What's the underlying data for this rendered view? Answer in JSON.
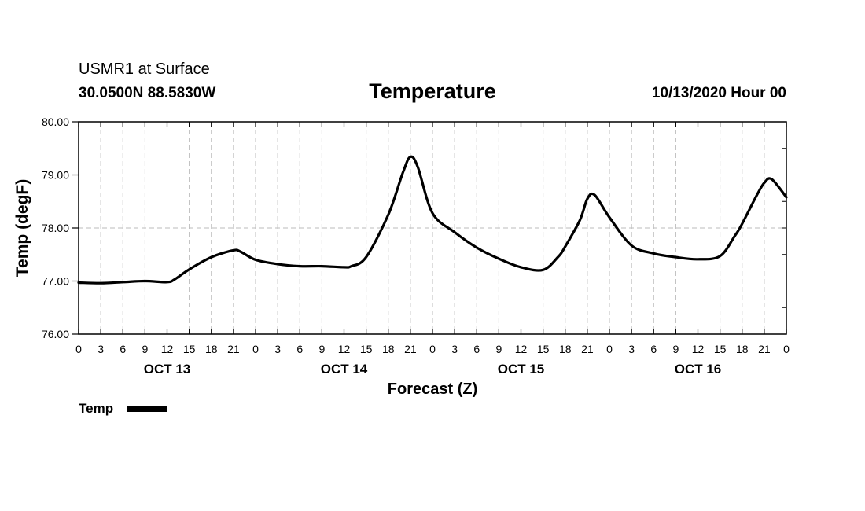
{
  "header": {
    "station": "USMR1 at Surface",
    "location": "30.0500N 88.5830W",
    "title": "Temperature",
    "datetime": "10/13/2020 Hour 00"
  },
  "legend": {
    "label": "Temp"
  },
  "colors": {
    "line": "#000000",
    "grid": "#bbbbbb",
    "background": "#ffffff"
  },
  "chart_data": {
    "type": "line",
    "title": "Temperature",
    "xlabel": "Forecast (Z)",
    "ylabel": "Temp (degF)",
    "ylim": [
      76,
      80
    ],
    "xlim": [
      0,
      96
    ],
    "yticks": [
      "76.00",
      "77.00",
      "78.00",
      "79.00",
      "80.00"
    ],
    "xtick_labels": [
      "0",
      "3",
      "6",
      "9",
      "12",
      "15",
      "18",
      "21",
      "0",
      "3",
      "6",
      "9",
      "12",
      "15",
      "18",
      "21",
      "0",
      "3",
      "6",
      "9",
      "12",
      "15",
      "18",
      "21",
      "0",
      "3",
      "6",
      "9",
      "12",
      "15",
      "18",
      "21",
      "0"
    ],
    "day_labels": [
      {
        "label": "OCT 13",
        "hour": 12
      },
      {
        "label": "OCT 14",
        "hour": 36
      },
      {
        "label": "OCT 15",
        "hour": 60
      },
      {
        "label": "OCT 16",
        "hour": 84
      }
    ],
    "series": [
      {
        "name": "Temp",
        "x": [
          0,
          3,
          6,
          9,
          12,
          13,
          15,
          18,
          21,
          22,
          24,
          27,
          30,
          33,
          36,
          37,
          39,
          42,
          44,
          45,
          46,
          48,
          51,
          54,
          57,
          60,
          63,
          65,
          66,
          68,
          69,
          70,
          72,
          75,
          78,
          81,
          84,
          87,
          89,
          90,
          92,
          93,
          94,
          96
        ],
        "values": [
          76.97,
          76.96,
          76.98,
          77.0,
          76.98,
          77.03,
          77.22,
          77.45,
          77.58,
          77.55,
          77.4,
          77.32,
          77.28,
          77.28,
          77.26,
          77.28,
          77.45,
          78.25,
          79.05,
          79.34,
          79.15,
          78.28,
          77.92,
          77.63,
          77.42,
          77.26,
          77.21,
          77.45,
          77.65,
          78.15,
          78.55,
          78.62,
          78.2,
          77.67,
          77.52,
          77.45,
          77.41,
          77.47,
          77.85,
          78.08,
          78.62,
          78.85,
          78.92,
          78.58
        ]
      }
    ]
  }
}
